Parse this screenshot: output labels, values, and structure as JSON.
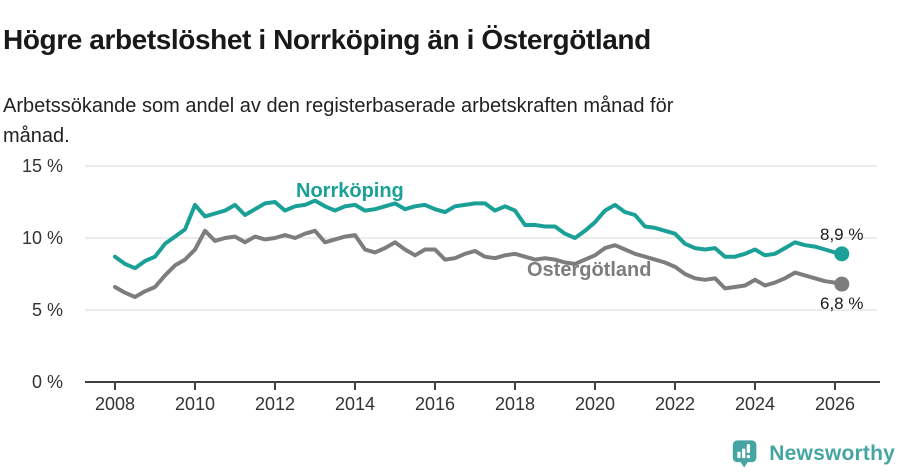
{
  "header": {
    "title": "Högre arbetslöshet i Norrköping än i Östergötland",
    "subtitle_line1": "Arbetssökande som andel av den registerbaserade arbetskraften månad för",
    "subtitle_line2": "månad."
  },
  "footer": {
    "brand": "Newsworthy",
    "brand_color": "#45a5a2",
    "logo_icon": "bar-chart-speech-bubble-icon"
  },
  "chart_data": {
    "type": "line",
    "grid": "horizontal-only",
    "legend": "inline-series-labels",
    "xlim": [
      2007.25,
      2027.1
    ],
    "ylim": [
      0,
      15.8
    ],
    "x_ticks": [
      2008,
      2010,
      2012,
      2014,
      2016,
      2018,
      2020,
      2022,
      2024,
      2026
    ],
    "x_tick_labels": [
      "2008",
      "2010",
      "2012",
      "2014",
      "2016",
      "2018",
      "2020",
      "2022",
      "2024",
      "2026"
    ],
    "y_ticks": [
      0,
      5,
      10,
      15
    ],
    "y_tick_labels": [
      "0 %",
      "5 %",
      "10 %",
      "15 %"
    ],
    "axis_color": "#3f3f3f",
    "gridline_color": "#dadada",
    "end_label_color": "#1a1a1a",
    "x": [
      2008,
      2008.25,
      2008.5,
      2008.75,
      2009,
      2009.25,
      2009.5,
      2009.75,
      2010,
      2010.25,
      2010.5,
      2010.75,
      2011,
      2011.25,
      2011.5,
      2011.75,
      2012,
      2012.25,
      2012.5,
      2012.75,
      2013,
      2013.25,
      2013.5,
      2013.75,
      2014,
      2014.25,
      2014.5,
      2014.75,
      2015,
      2015.25,
      2015.5,
      2015.75,
      2016,
      2016.25,
      2016.5,
      2016.75,
      2017,
      2017.25,
      2017.5,
      2017.75,
      2018,
      2018.25,
      2018.5,
      2018.75,
      2019,
      2019.25,
      2019.5,
      2019.75,
      2020,
      2020.25,
      2020.5,
      2020.75,
      2021,
      2021.25,
      2021.5,
      2021.75,
      2022,
      2022.25,
      2022.5,
      2022.75,
      2023,
      2023.25,
      2023.5,
      2023.75,
      2024,
      2024.25,
      2024.5,
      2024.75,
      2025,
      2025.25,
      2025.5,
      2025.75,
      2026,
      2026.17
    ],
    "series": [
      {
        "name": "Norrköping",
        "color": "#1aa096",
        "end_label": "8,9 %",
        "end_value": 8.9,
        "values": [
          8.7,
          8.2,
          7.9,
          8.4,
          8.7,
          9.6,
          10.1,
          10.6,
          12.3,
          11.5,
          11.7,
          11.9,
          12.3,
          11.6,
          12.0,
          12.4,
          12.5,
          11.9,
          12.2,
          12.3,
          12.6,
          12.2,
          11.9,
          12.2,
          12.3,
          11.9,
          12.0,
          12.2,
          12.4,
          12.0,
          12.2,
          12.3,
          12.0,
          11.8,
          12.2,
          12.3,
          12.4,
          12.4,
          11.9,
          12.2,
          11.9,
          10.9,
          10.9,
          10.8,
          10.8,
          10.3,
          10.0,
          10.5,
          11.1,
          11.9,
          12.3,
          11.8,
          11.6,
          10.8,
          10.7,
          10.5,
          10.3,
          9.6,
          9.3,
          9.2,
          9.3,
          8.7,
          8.7,
          8.9,
          9.2,
          8.8,
          8.9,
          9.3,
          9.7,
          9.5,
          9.4,
          9.2,
          9.0,
          8.9
        ]
      },
      {
        "name": "Östergötland",
        "color": "#7d7d7d",
        "end_label": "6,8 %",
        "end_value": 6.8,
        "values": [
          6.6,
          6.2,
          5.9,
          6.3,
          6.6,
          7.4,
          8.1,
          8.5,
          9.2,
          10.5,
          9.8,
          10.0,
          10.1,
          9.7,
          10.1,
          9.9,
          10.0,
          10.2,
          10.0,
          10.3,
          10.5,
          9.7,
          9.9,
          10.1,
          10.2,
          9.2,
          9.0,
          9.3,
          9.7,
          9.2,
          8.8,
          9.2,
          9.2,
          8.5,
          8.6,
          8.9,
          9.1,
          8.7,
          8.6,
          8.8,
          8.9,
          8.7,
          8.5,
          8.6,
          8.5,
          8.3,
          8.2,
          8.5,
          8.8,
          9.3,
          9.5,
          9.2,
          8.9,
          8.7,
          8.5,
          8.3,
          8.0,
          7.5,
          7.2,
          7.1,
          7.2,
          6.5,
          6.6,
          6.7,
          7.1,
          6.7,
          6.9,
          7.2,
          7.6,
          7.4,
          7.2,
          7.0,
          6.9,
          6.8
        ]
      }
    ]
  }
}
